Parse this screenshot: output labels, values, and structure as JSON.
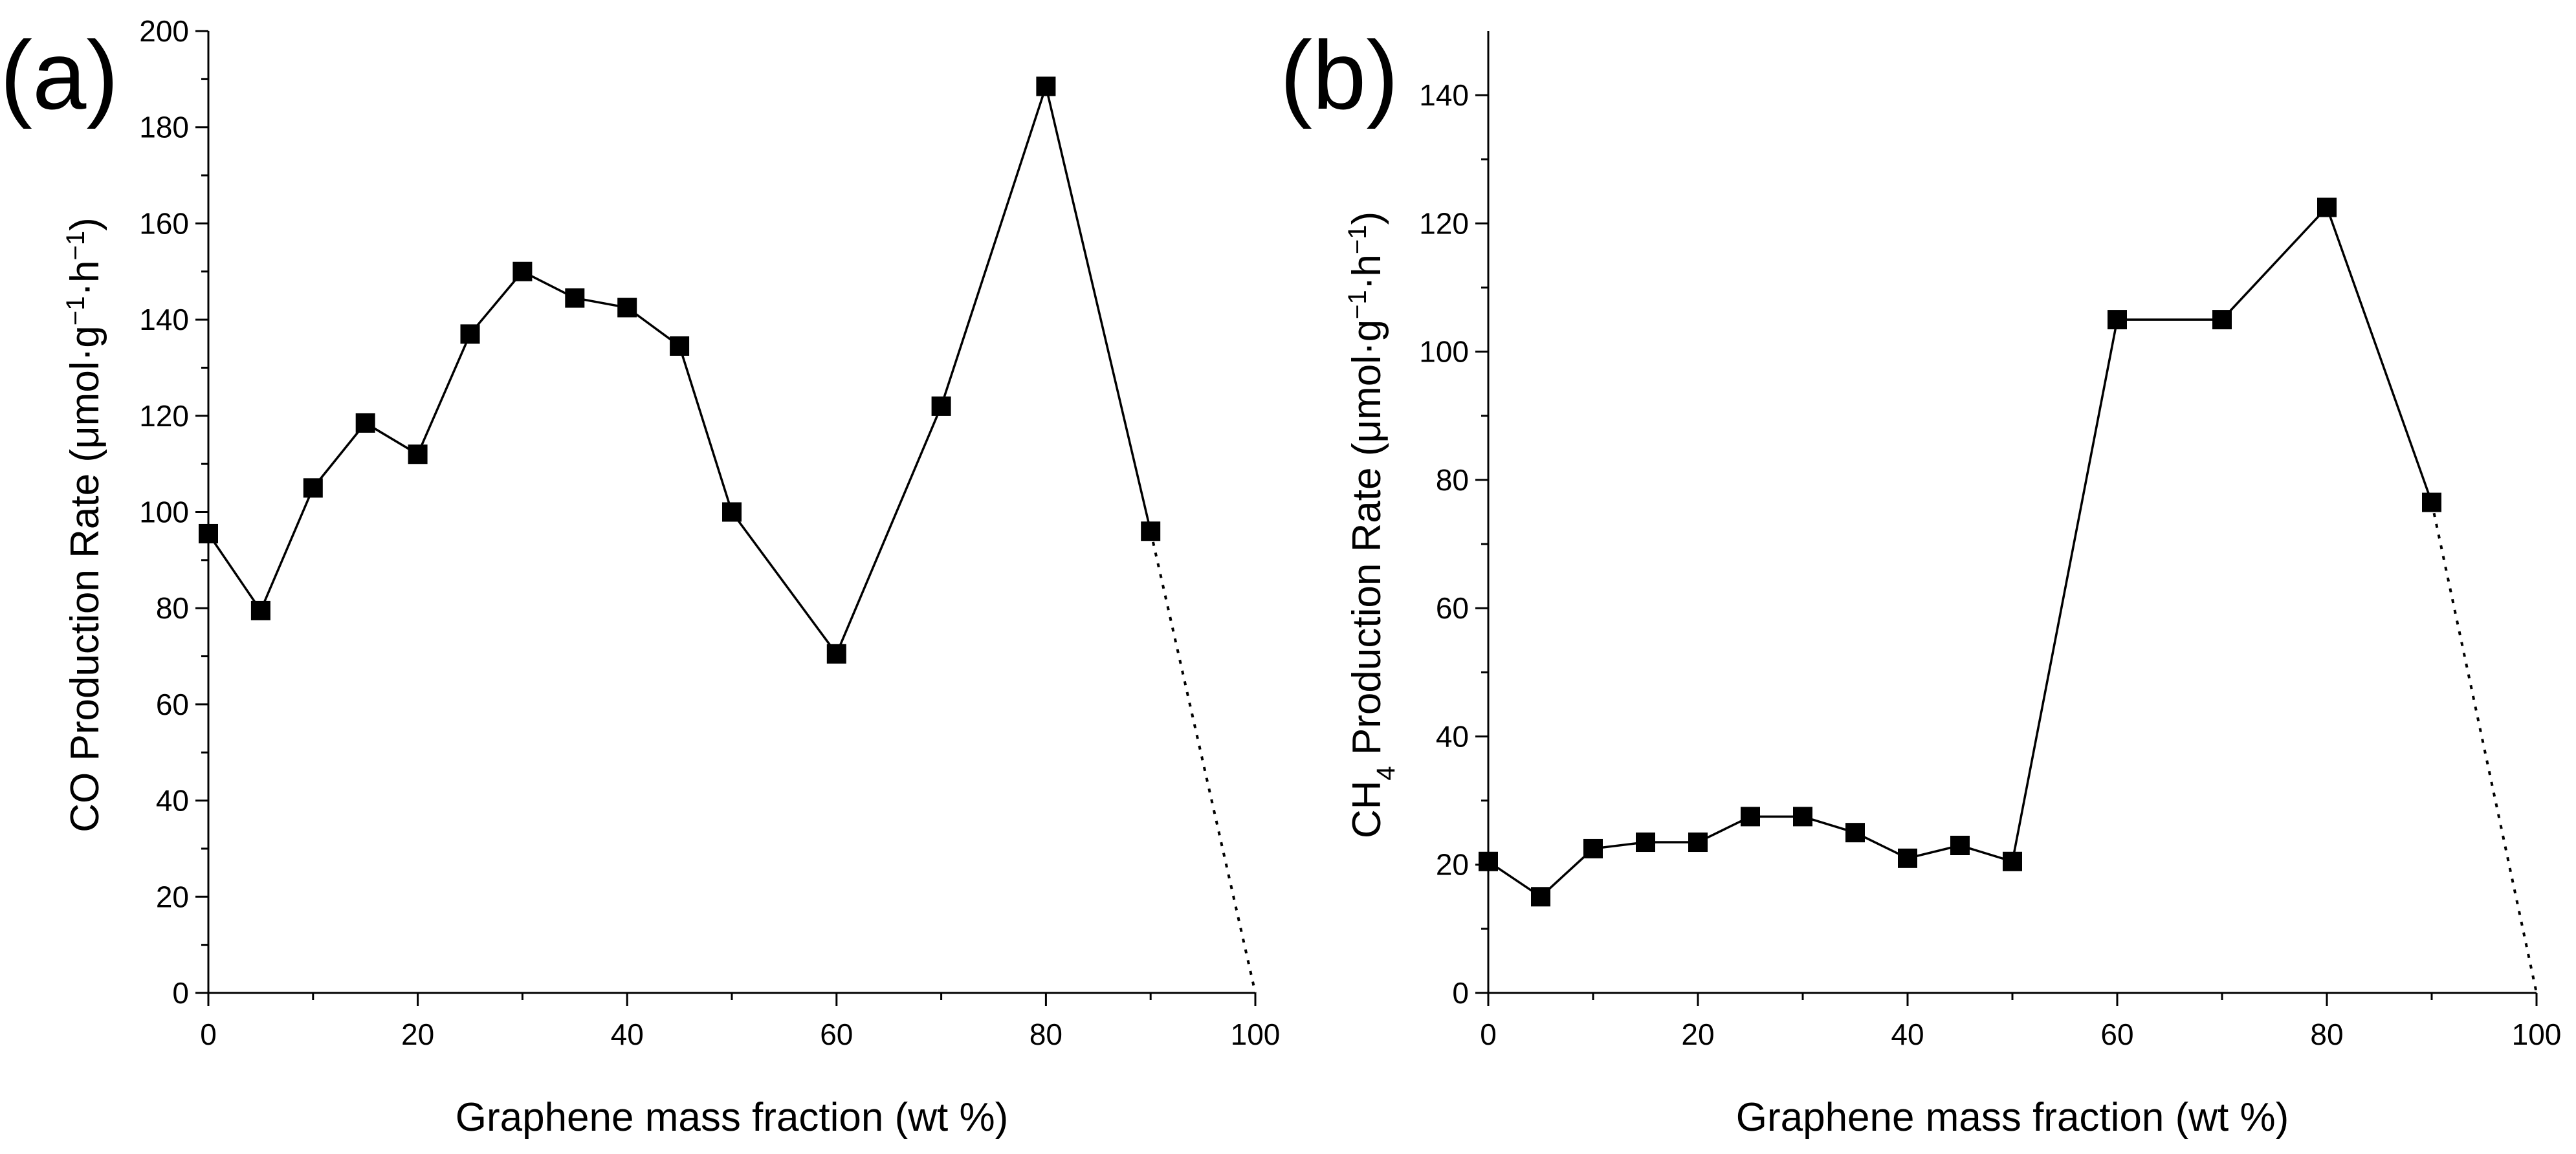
{
  "chart_data": [
    {
      "type": "line",
      "panel_label": "(a)",
      "xlabel": "Graphene mass fraction (wt %)",
      "ylabel_parts": [
        "CO Production Rate (μmol·g",
        "−1",
        "·h",
        "−1",
        ")"
      ],
      "xlim": [
        0,
        100
      ],
      "ylim": [
        0,
        200
      ],
      "x_ticks": [
        0,
        20,
        40,
        60,
        80,
        100
      ],
      "y_ticks": [
        0,
        20,
        40,
        60,
        80,
        100,
        120,
        140,
        160,
        180,
        200
      ],
      "series": [
        {
          "name": "CO",
          "x": [
            0,
            5,
            10,
            15,
            20,
            25,
            30,
            35,
            40,
            45,
            50,
            60,
            70,
            80,
            90
          ],
          "values": [
            95.5,
            79.5,
            105,
            118.5,
            112,
            137,
            150,
            144.5,
            142.5,
            134.5,
            100,
            70.5,
            122,
            188.5,
            96
          ]
        }
      ],
      "extrapolation": {
        "style": "dotted",
        "x": [
          90,
          100
        ],
        "values": [
          96,
          0
        ]
      }
    },
    {
      "type": "line",
      "panel_label": "(b)",
      "xlabel": "Graphene mass fraction (wt %)",
      "ylabel_parts": [
        "CH",
        "4",
        " Production Rate (μmol·g",
        "−1",
        "·h",
        "−1",
        ")"
      ],
      "xlim": [
        0,
        100
      ],
      "ylim": [
        0,
        150
      ],
      "x_ticks": [
        0,
        20,
        40,
        60,
        80,
        100
      ],
      "y_ticks": [
        0,
        20,
        40,
        60,
        80,
        100,
        120,
        140
      ],
      "series": [
        {
          "name": "CH4",
          "x": [
            0,
            5,
            10,
            15,
            20,
            25,
            30,
            35,
            40,
            45,
            50,
            60,
            70,
            80,
            90
          ],
          "values": [
            20.5,
            15,
            22.5,
            23.5,
            23.5,
            27.5,
            27.5,
            25,
            21,
            23,
            20.5,
            105,
            105,
            122.5,
            76.5
          ]
        }
      ],
      "extrapolation": {
        "style": "dotted",
        "x": [
          90,
          100
        ],
        "values": [
          76.5,
          0
        ]
      }
    }
  ]
}
